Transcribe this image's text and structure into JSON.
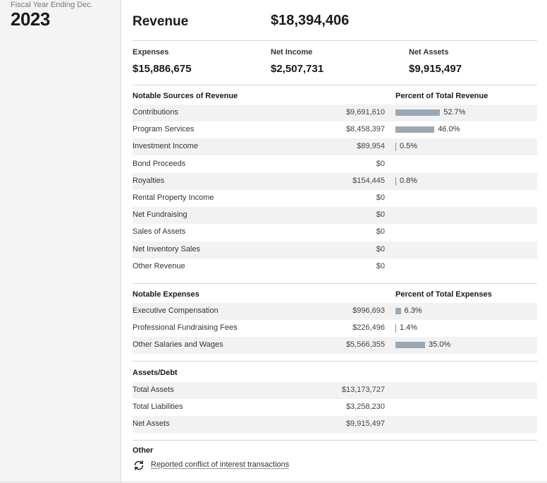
{
  "fiscal_year": {
    "label": "Fiscal Year Ending Dec.",
    "year": "2023"
  },
  "summary": {
    "revenue_label": "Revenue",
    "revenue_value": "$18,394,406",
    "expenses_label": "Expenses",
    "expenses_value": "$15,886,675",
    "net_income_label": "Net Income",
    "net_income_value": "$2,507,731",
    "net_assets_label": "Net Assets",
    "net_assets_value": "$9,915,497"
  },
  "revenue": {
    "title": "Notable Sources of Revenue",
    "pct_title": "Percent of Total Revenue",
    "rows": [
      {
        "label": "Contributions",
        "amount": "$9,691,610",
        "pct": "52.7%",
        "pct_value": 52.7
      },
      {
        "label": "Program Services",
        "amount": "$8,458,397",
        "pct": "46.0%",
        "pct_value": 46.0
      },
      {
        "label": "Investment Income",
        "amount": "$89,954",
        "pct": "0.5%",
        "pct_value": 0.5
      },
      {
        "label": "Bond Proceeds",
        "amount": "$0",
        "pct": "",
        "pct_value": 0
      },
      {
        "label": "Royalties",
        "amount": "$154,445",
        "pct": "0.8%",
        "pct_value": 0.8
      },
      {
        "label": "Rental Property Income",
        "amount": "$0",
        "pct": "",
        "pct_value": 0
      },
      {
        "label": "Net Fundraising",
        "amount": "$0",
        "pct": "",
        "pct_value": 0
      },
      {
        "label": "Sales of Assets",
        "amount": "$0",
        "pct": "",
        "pct_value": 0
      },
      {
        "label": "Net Inventory Sales",
        "amount": "$0",
        "pct": "",
        "pct_value": 0
      },
      {
        "label": "Other Revenue",
        "amount": "$0",
        "pct": "",
        "pct_value": 0
      }
    ]
  },
  "expenses": {
    "title": "Notable Expenses",
    "pct_title": "Percent of Total Expenses",
    "rows": [
      {
        "label": "Executive Compensation",
        "amount": "$996,693",
        "pct": "6.3%",
        "pct_value": 6.3
      },
      {
        "label": "Professional Fundraising Fees",
        "amount": "$226,496",
        "pct": "1.4%",
        "pct_value": 1.4
      },
      {
        "label": "Other Salaries and Wages",
        "amount": "$5,566,355",
        "pct": "35.0%",
        "pct_value": 35.0
      }
    ]
  },
  "assets": {
    "title": "Assets/Debt",
    "rows": [
      {
        "label": "Total Assets",
        "amount": "$13,173,727"
      },
      {
        "label": "Total Liabilities",
        "amount": "$3,258,230"
      },
      {
        "label": "Net Assets",
        "amount": "$9,915,497"
      }
    ]
  },
  "other": {
    "title": "Other",
    "link_label": "Reported conflict of interest transactions",
    "icon": "refresh-icon"
  },
  "colors": {
    "bar": "#9aa8b4",
    "row_shade": "#f2f2f2",
    "sidebar": "#f4f4f4"
  }
}
